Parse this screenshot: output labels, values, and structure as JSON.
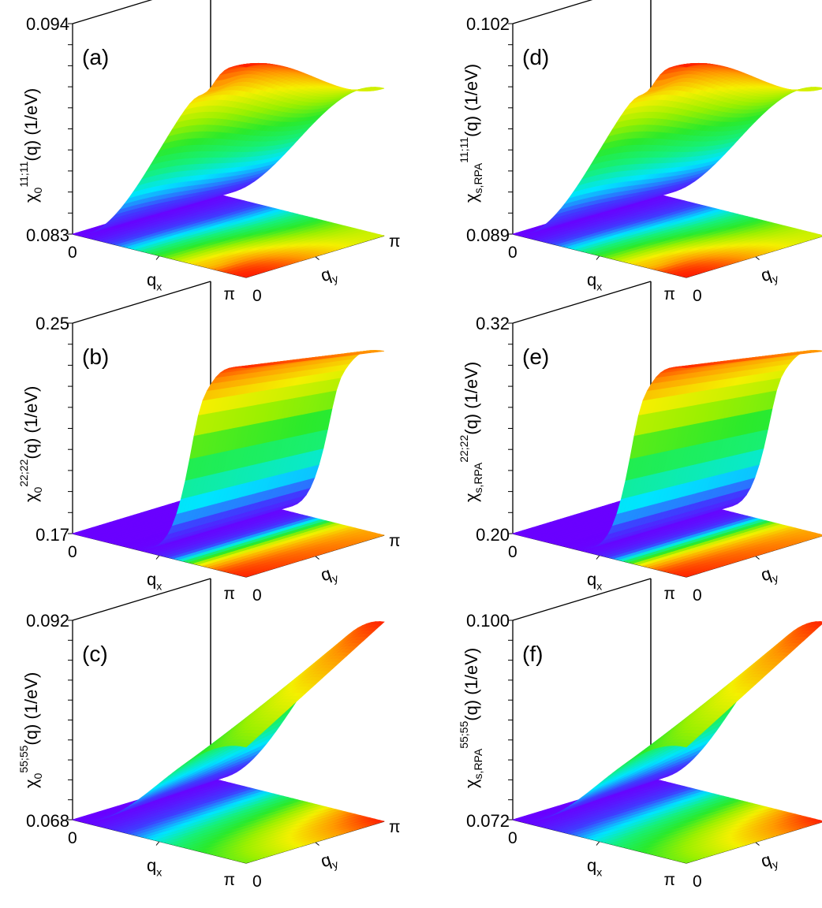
{
  "figure": {
    "layout": "3 rows x 2 columns of 3D surface plots"
  },
  "chart_data": [
    {
      "type": "surface3d",
      "panel": "(a)",
      "zlabel_main": "χ",
      "zlabel_sub": "0",
      "zlabel_sup": "11;11",
      "zlabel_tail": "(q) (1/eV)",
      "zlim": [
        0.083,
        0.094
      ],
      "ztick_top": "0.094",
      "ztick_bottom": "0.083",
      "xlabel": "q",
      "xlabel_sub": "x",
      "ylabel": "q",
      "ylabel_sub": "y",
      "xtick_start": "0",
      "xtick_end": "π",
      "ytick_start": "0",
      "ytick_end": "π",
      "shape": "dome",
      "peak_value": 0.094,
      "min_value": 0.083,
      "z_samples_qy0": [
        0.083,
        0.0845,
        0.088,
        0.0915,
        0.094
      ],
      "z_samples_qypi": [
        0.083,
        0.0842,
        0.0865,
        0.0885,
        0.09
      ]
    },
    {
      "type": "surface3d",
      "panel": "(b)",
      "zlabel_main": "χ",
      "zlabel_sub": "0",
      "zlabel_sup": "22;22",
      "zlabel_tail": "(q) (1/eV)",
      "zlim": [
        0.17,
        0.25
      ],
      "ztick_top": "0.25",
      "ztick_bottom": "0.17",
      "xlabel": "q",
      "xlabel_sub": "x",
      "ylabel": "q",
      "ylabel_sub": "y",
      "xtick_start": "0",
      "xtick_end": "π",
      "ytick_start": "0",
      "ytick_end": "π",
      "shape": "step",
      "peak_value": 0.25,
      "min_value": 0.17,
      "z_samples_qy0": [
        0.17,
        0.17,
        0.172,
        0.215,
        0.25
      ],
      "z_samples_qypi": [
        0.17,
        0.17,
        0.171,
        0.205,
        0.235
      ]
    },
    {
      "type": "surface3d",
      "panel": "(c)",
      "zlabel_main": "χ",
      "zlabel_sub": "0",
      "zlabel_sup": "55;55",
      "zlabel_tail": "(q) (1/eV)",
      "zlim": [
        0.068,
        0.092
      ],
      "ztick_top": "0.092",
      "ztick_bottom": "0.068",
      "xlabel": "q",
      "xlabel_sub": "x",
      "ylabel": "q",
      "ylabel_sub": "y",
      "xtick_start": "0",
      "xtick_end": "π",
      "ytick_start": "0",
      "ytick_end": "π",
      "shape": "ramp",
      "peak_value": 0.092,
      "min_value": 0.068,
      "z_samples_qy0": [
        0.068,
        0.072,
        0.079,
        0.083,
        0.085
      ],
      "z_samples_qypi": [
        0.068,
        0.073,
        0.08,
        0.087,
        0.092
      ]
    },
    {
      "type": "surface3d",
      "panel": "(d)",
      "zlabel_main": "χ",
      "zlabel_sub": "s,RPA",
      "zlabel_sup": "11;11",
      "zlabel_tail": "(q) (1/eV)",
      "zlim": [
        0.089,
        0.102
      ],
      "ztick_top": "0.102",
      "ztick_bottom": "0.089",
      "xlabel": "q",
      "xlabel_sub": "x",
      "ylabel": "q",
      "ylabel_sub": "y",
      "xtick_start": "0",
      "xtick_end": "π",
      "ytick_start": "0",
      "ytick_end": "π",
      "shape": "dome",
      "peak_value": 0.102,
      "min_value": 0.089,
      "z_samples_qy0": [
        0.089,
        0.0905,
        0.095,
        0.099,
        0.102
      ],
      "z_samples_qypi": [
        0.089,
        0.0902,
        0.093,
        0.0955,
        0.097
      ]
    },
    {
      "type": "surface3d",
      "panel": "(e)",
      "zlabel_main": "χ",
      "zlabel_sub": "s,RPA",
      "zlabel_sup": "22;22",
      "zlabel_tail": "(q) (1/eV)",
      "zlim": [
        0.2,
        0.32
      ],
      "ztick_top": "0.32",
      "ztick_bottom": "0.20",
      "xlabel": "q",
      "xlabel_sub": "x",
      "ylabel": "q",
      "ylabel_sub": "y",
      "xtick_start": "0",
      "xtick_end": "π",
      "ytick_start": "0",
      "ytick_end": "π",
      "shape": "step",
      "peak_value": 0.32,
      "min_value": 0.2,
      "z_samples_qy0": [
        0.2,
        0.2,
        0.203,
        0.27,
        0.32
      ],
      "z_samples_qypi": [
        0.2,
        0.2,
        0.202,
        0.255,
        0.3
      ]
    },
    {
      "type": "surface3d",
      "panel": "(f)",
      "zlabel_main": "χ",
      "zlabel_sub": "s,RPA",
      "zlabel_sup": "55;55",
      "zlabel_tail": "(q) (1/eV)",
      "zlim": [
        0.072,
        0.1
      ],
      "ztick_top": "0.100",
      "ztick_bottom": "0.072",
      "xlabel": "q",
      "xlabel_sub": "x",
      "ylabel": "q",
      "ylabel_sub": "y",
      "xtick_start": "0",
      "xtick_end": "π",
      "ytick_start": "0",
      "ytick_end": "π",
      "shape": "ramp",
      "peak_value": 0.1,
      "min_value": 0.072,
      "z_samples_qy0": [
        0.072,
        0.077,
        0.085,
        0.09,
        0.092
      ],
      "z_samples_qypi": [
        0.072,
        0.078,
        0.086,
        0.094,
        0.1
      ]
    }
  ],
  "colormap": [
    "#6a00ff",
    "#3f3cff",
    "#00e5ff",
    "#16f07a",
    "#2bea2b",
    "#9cf000",
    "#f4f000",
    "#ff9a00",
    "#ff2000"
  ]
}
